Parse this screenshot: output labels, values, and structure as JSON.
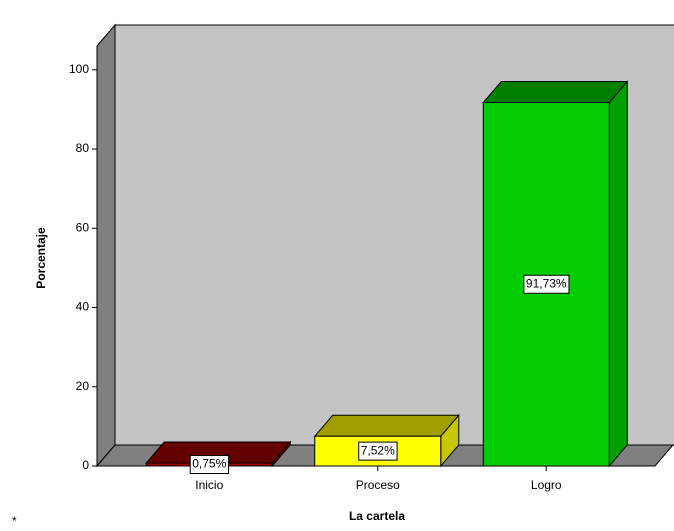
{
  "chart_data": {
    "type": "bar3d",
    "x_label": "La cartela",
    "y_label": "Porcentaje",
    "categories": [
      "Inicio",
      "Proceso",
      "Logro"
    ],
    "values": [
      0.75,
      7.52,
      91.73
    ],
    "value_labels": [
      "0,75%",
      "7,52%",
      "91,73%"
    ],
    "colors": [
      "#a00000",
      "#ffff00",
      "#00cc00"
    ],
    "ylim": [
      0,
      106
    ],
    "yticks": [
      0,
      20,
      40,
      60,
      80,
      100
    ]
  },
  "footnote": "*"
}
